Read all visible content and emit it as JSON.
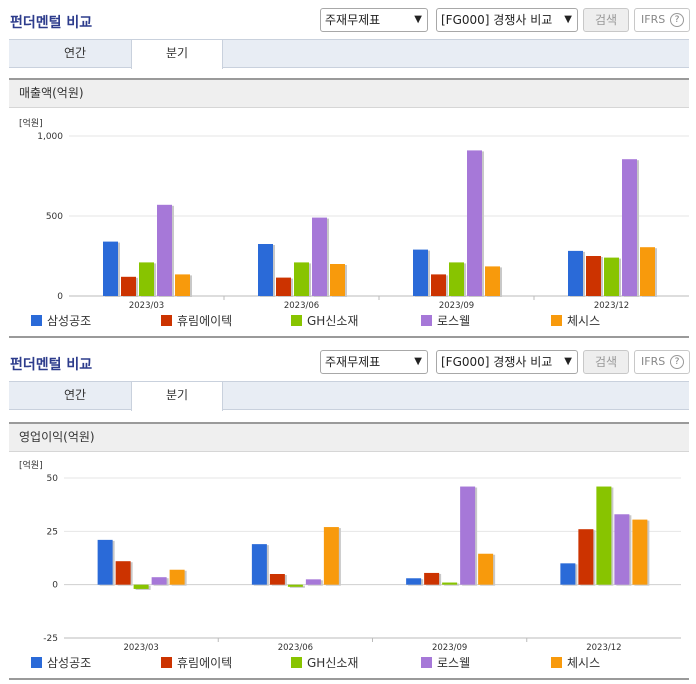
{
  "panels": [
    {
      "header": {
        "title": "펀더멘털 비교",
        "select1": "주재무제표",
        "select2": "[FG000] 경쟁사 비교",
        "search": "검색",
        "ifrs": "IFRS",
        "help": "?"
      },
      "tabs": [
        "연간",
        "분기"
      ],
      "subtitle": "매출액(억원)"
    },
    {
      "header": {
        "title": "펀더멘털 비교",
        "select1": "주재무제표",
        "select2": "[FG000] 경쟁사 비교",
        "search": "검색",
        "ifrs": "IFRS",
        "help": "?"
      },
      "tabs": [
        "연간",
        "분기"
      ],
      "subtitle": "영업이익(억원)"
    }
  ],
  "colors": [
    "#2a6ad8",
    "#cc3300",
    "#88c400",
    "#a678d8",
    "#f89a0c"
  ],
  "chart_data": [
    {
      "type": "bar",
      "title": "매출액(억원)",
      "unit_label": "[억원]",
      "categories": [
        "2023/03",
        "2023/06",
        "2023/09",
        "2023/12"
      ],
      "ylim": [
        0,
        1000
      ],
      "yticks": [
        0,
        500,
        1000
      ],
      "ytick_labels": [
        "0",
        "500",
        "1,000"
      ],
      "grid": true,
      "legend": "bottom",
      "series": [
        {
          "name": "삼성공조",
          "values": [
            340,
            325,
            290,
            282
          ]
        },
        {
          "name": "휴림에이텍",
          "values": [
            120,
            115,
            135,
            250
          ]
        },
        {
          "name": "GH신소재",
          "values": [
            210,
            210,
            210,
            240
          ]
        },
        {
          "name": "로스웰",
          "values": [
            570,
            490,
            910,
            855
          ]
        },
        {
          "name": "체시스",
          "values": [
            135,
            200,
            185,
            305
          ]
        }
      ]
    },
    {
      "type": "bar",
      "title": "영업이익(억원)",
      "unit_label": "[억원]",
      "categories": [
        "2023/03",
        "2023/06",
        "2023/09",
        "2023/12"
      ],
      "ylim": [
        -25,
        50
      ],
      "yticks": [
        -25,
        0,
        25,
        50
      ],
      "ytick_labels": [
        "-25",
        "0",
        "25",
        "50"
      ],
      "grid": true,
      "legend": "bottom",
      "series": [
        {
          "name": "삼성공조",
          "values": [
            21,
            19,
            3,
            10
          ]
        },
        {
          "name": "휴림에이텍",
          "values": [
            11,
            5,
            5.5,
            26
          ]
        },
        {
          "name": "GH신소재",
          "values": [
            -2,
            -1,
            1,
            46
          ]
        },
        {
          "name": "로스웰",
          "values": [
            3.5,
            2.5,
            46,
            33
          ]
        },
        {
          "name": "체시스",
          "values": [
            7,
            27,
            14.5,
            30.5
          ]
        }
      ]
    }
  ]
}
